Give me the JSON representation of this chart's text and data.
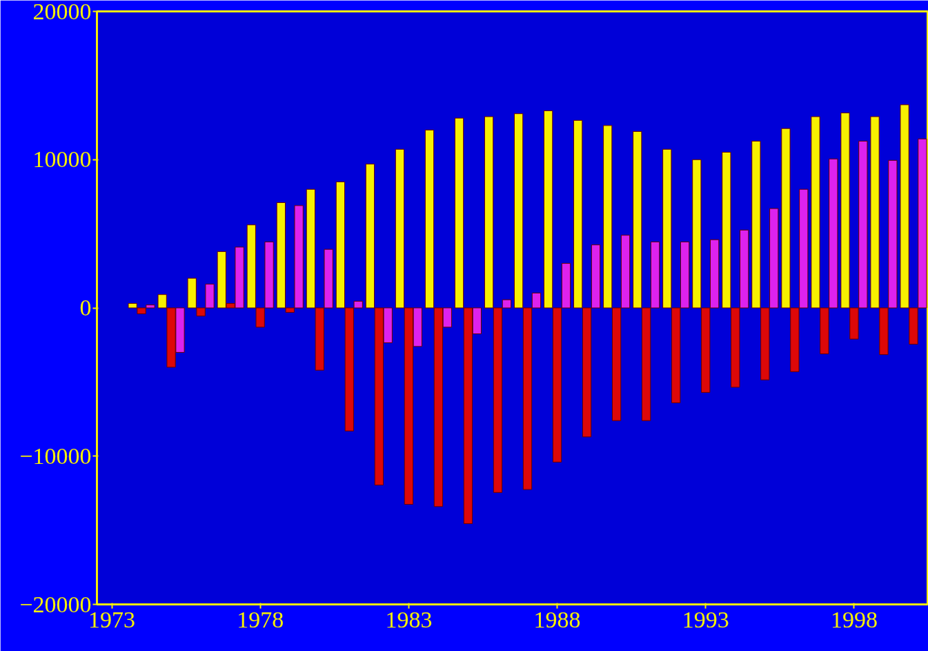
{
  "chart_data": {
    "type": "bar",
    "x": [
      1974,
      1975,
      1976,
      1977,
      1978,
      1979,
      1980,
      1981,
      1982,
      1983,
      1984,
      1985,
      1986,
      1987,
      1988,
      1989,
      1990,
      1991,
      1992,
      1993,
      1994,
      1995,
      1996,
      1997,
      1998,
      1999,
      2000
    ],
    "series": [
      {
        "color": "#f7f000",
        "values": [
          300,
          900,
          2000,
          3800,
          5600,
          7100,
          8000,
          8500,
          9700,
          10700,
          12000,
          12800,
          12900,
          13100,
          13300,
          12650,
          12300,
          11900,
          10700,
          10000,
          10500,
          11250,
          12100,
          12900,
          13150,
          12900,
          13700
        ]
      },
      {
        "color": "#dd0808",
        "values": [
          -400,
          -4000,
          -550,
          300,
          -1300,
          -300,
          -4200,
          -8300,
          -11950,
          -13250,
          -13400,
          -14550,
          -12450,
          -12250,
          -10400,
          -8700,
          -7600,
          -7600,
          -6400,
          -5700,
          -5350,
          -4850,
          -4300,
          -3100,
          -2100,
          -3150,
          -2450
        ]
      },
      {
        "color": "#dd22ee",
        "values": [
          200,
          -3000,
          1600,
          4100,
          4450,
          6900,
          3950,
          450,
          -2350,
          -2600,
          -1300,
          -1750,
          550,
          1000,
          3000,
          4250,
          4900,
          4450,
          4450,
          4600,
          5250,
          6700,
          8000,
          10050,
          11250,
          9950,
          11400
        ]
      }
    ],
    "xlim": [
      1972.5,
      2000.5
    ],
    "xticks": [
      1973,
      1978,
      1983,
      1988,
      1993,
      1998
    ],
    "ylim": [
      -20000,
      20000
    ],
    "yticks": [
      -20000,
      -10000,
      0,
      10000,
      20000
    ],
    "grid": false
  }
}
